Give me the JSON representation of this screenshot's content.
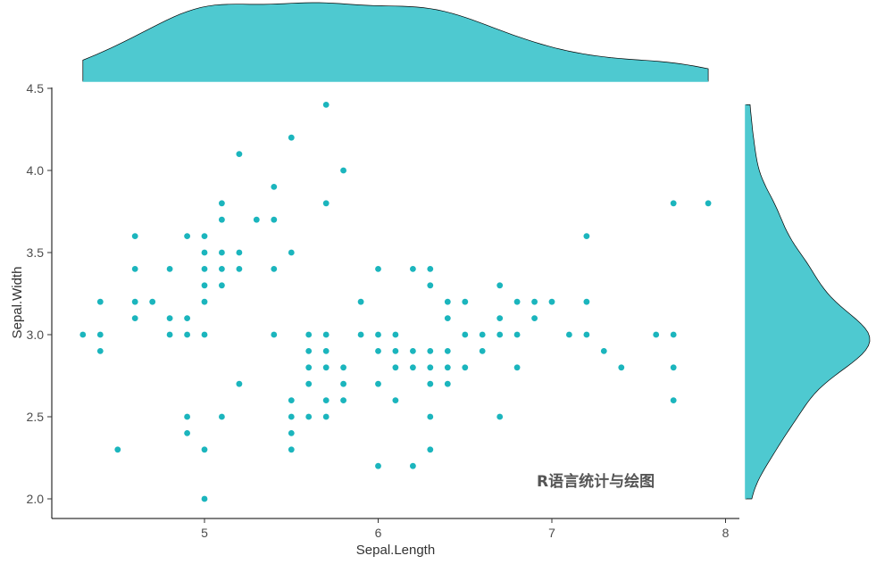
{
  "chart_data": {
    "type": "scatter",
    "title": "",
    "xlabel": "Sepal.Length",
    "ylabel": "Sepal.Width",
    "xlim": [
      4.2,
      8.0
    ],
    "ylim": [
      1.9,
      4.5
    ],
    "x_ticks": [
      "5",
      "6",
      "7",
      "8"
    ],
    "y_ticks": [
      "2.0",
      "2.5",
      "3.0",
      "3.5",
      "4.0",
      "4.5"
    ],
    "grid": false,
    "point_color": "#1bb5bd",
    "density_fill": "#4ec9d0",
    "marginal_x": {
      "type": "density",
      "variable": "Sepal.Length"
    },
    "marginal_y": {
      "type": "density",
      "variable": "Sepal.Width"
    },
    "watermark": "R语言统计与绘图",
    "points": [
      [
        4.3,
        3.0
      ],
      [
        4.4,
        2.9
      ],
      [
        4.4,
        3.0
      ],
      [
        4.4,
        3.2
      ],
      [
        4.5,
        2.3
      ],
      [
        4.6,
        3.1
      ],
      [
        4.6,
        3.2
      ],
      [
        4.6,
        3.4
      ],
      [
        4.6,
        3.6
      ],
      [
        4.7,
        3.2
      ],
      [
        4.8,
        3.0
      ],
      [
        4.8,
        3.1
      ],
      [
        4.8,
        3.4
      ],
      [
        4.9,
        2.4
      ],
      [
        4.9,
        2.5
      ],
      [
        4.9,
        3.0
      ],
      [
        4.9,
        3.1
      ],
      [
        4.9,
        3.6
      ],
      [
        5.0,
        2.0
      ],
      [
        5.0,
        2.3
      ],
      [
        5.0,
        3.0
      ],
      [
        5.0,
        3.2
      ],
      [
        5.0,
        3.3
      ],
      [
        5.0,
        3.4
      ],
      [
        5.0,
        3.5
      ],
      [
        5.0,
        3.6
      ],
      [
        5.1,
        2.5
      ],
      [
        5.1,
        3.3
      ],
      [
        5.1,
        3.4
      ],
      [
        5.1,
        3.5
      ],
      [
        5.1,
        3.7
      ],
      [
        5.1,
        3.8
      ],
      [
        5.2,
        2.7
      ],
      [
        5.2,
        3.4
      ],
      [
        5.2,
        3.5
      ],
      [
        5.2,
        4.1
      ],
      [
        5.3,
        3.7
      ],
      [
        5.4,
        3.0
      ],
      [
        5.4,
        3.4
      ],
      [
        5.4,
        3.7
      ],
      [
        5.4,
        3.9
      ],
      [
        5.5,
        2.3
      ],
      [
        5.5,
        2.4
      ],
      [
        5.5,
        2.5
      ],
      [
        5.5,
        2.6
      ],
      [
        5.5,
        3.5
      ],
      [
        5.5,
        4.2
      ],
      [
        5.6,
        2.5
      ],
      [
        5.6,
        2.7
      ],
      [
        5.6,
        2.8
      ],
      [
        5.6,
        2.9
      ],
      [
        5.6,
        3.0
      ],
      [
        5.7,
        2.5
      ],
      [
        5.7,
        2.6
      ],
      [
        5.7,
        2.8
      ],
      [
        5.7,
        2.9
      ],
      [
        5.7,
        3.0
      ],
      [
        5.7,
        3.8
      ],
      [
        5.7,
        4.4
      ],
      [
        5.8,
        2.6
      ],
      [
        5.8,
        2.7
      ],
      [
        5.8,
        2.8
      ],
      [
        5.8,
        4.0
      ],
      [
        5.9,
        3.0
      ],
      [
        5.9,
        3.2
      ],
      [
        6.0,
        2.2
      ],
      [
        6.0,
        2.7
      ],
      [
        6.0,
        2.9
      ],
      [
        6.0,
        3.0
      ],
      [
        6.0,
        3.4
      ],
      [
        6.1,
        2.6
      ],
      [
        6.1,
        2.8
      ],
      [
        6.1,
        2.9
      ],
      [
        6.1,
        3.0
      ],
      [
        6.2,
        2.2
      ],
      [
        6.2,
        2.8
      ],
      [
        6.2,
        2.9
      ],
      [
        6.2,
        3.4
      ],
      [
        6.3,
        2.3
      ],
      [
        6.3,
        2.5
      ],
      [
        6.3,
        2.7
      ],
      [
        6.3,
        2.8
      ],
      [
        6.3,
        2.9
      ],
      [
        6.3,
        3.3
      ],
      [
        6.3,
        3.4
      ],
      [
        6.4,
        2.7
      ],
      [
        6.4,
        2.8
      ],
      [
        6.4,
        2.9
      ],
      [
        6.4,
        3.1
      ],
      [
        6.4,
        3.2
      ],
      [
        6.5,
        2.8
      ],
      [
        6.5,
        3.0
      ],
      [
        6.5,
        3.2
      ],
      [
        6.6,
        2.9
      ],
      [
        6.6,
        3.0
      ],
      [
        6.7,
        2.5
      ],
      [
        6.7,
        3.0
      ],
      [
        6.7,
        3.1
      ],
      [
        6.7,
        3.3
      ],
      [
        6.8,
        2.8
      ],
      [
        6.8,
        3.0
      ],
      [
        6.8,
        3.2
      ],
      [
        6.9,
        3.1
      ],
      [
        6.9,
        3.2
      ],
      [
        7.0,
        3.2
      ],
      [
        7.1,
        3.0
      ],
      [
        7.2,
        3.0
      ],
      [
        7.2,
        3.2
      ],
      [
        7.2,
        3.6
      ],
      [
        7.3,
        2.9
      ],
      [
        7.4,
        2.8
      ],
      [
        7.6,
        3.0
      ],
      [
        7.7,
        2.6
      ],
      [
        7.7,
        2.8
      ],
      [
        7.7,
        3.0
      ],
      [
        7.7,
        3.8
      ],
      [
        7.9,
        3.8
      ]
    ]
  }
}
